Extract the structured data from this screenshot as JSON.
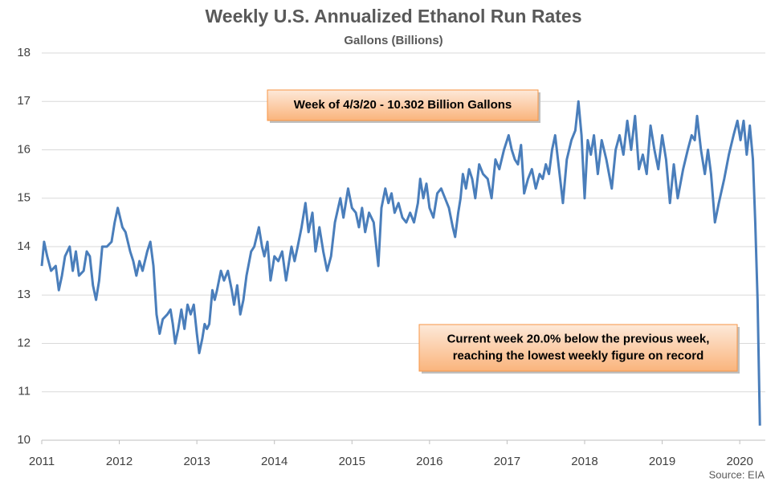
{
  "chart_data": {
    "type": "line",
    "title": "Weekly U.S. Annualized Ethanol Run Rates",
    "subtitle": "Gallons (Billions)",
    "source": "Source: EIA",
    "annotations": [
      [
        "Week of 4/3/20 - 10.302 Billion Gallons"
      ],
      [
        "Current week 20.0% below the previous week,",
        "reaching the lowest weekly figure on record"
      ]
    ],
    "xlim": [
      2011,
      2020.33
    ],
    "xticks": [
      2011,
      2012,
      2013,
      2014,
      2015,
      2016,
      2017,
      2018,
      2019,
      2020
    ],
    "ylim": [
      10,
      18
    ],
    "yticks": [
      10,
      11,
      12,
      13,
      14,
      15,
      16,
      17,
      18
    ],
    "grid": true,
    "series": [
      {
        "color": "#4a7ebb",
        "x": [
          2011.0,
          2011.03,
          2011.07,
          2011.12,
          2011.18,
          2011.22,
          2011.26,
          2011.3,
          2011.36,
          2011.4,
          2011.44,
          2011.48,
          2011.54,
          2011.58,
          2011.62,
          2011.66,
          2011.7,
          2011.74,
          2011.78,
          2011.84,
          2011.9,
          2011.94,
          2011.98,
          2012.04,
          2012.08,
          2012.14,
          2012.18,
          2012.22,
          2012.26,
          2012.3,
          2012.36,
          2012.4,
          2012.44,
          2012.48,
          2012.52,
          2012.56,
          2012.62,
          2012.66,
          2012.69,
          2012.72,
          2012.76,
          2012.8,
          2012.84,
          2012.88,
          2012.92,
          2012.96,
          2013.0,
          2013.03,
          2013.07,
          2013.1,
          2013.13,
          2013.16,
          2013.2,
          2013.23,
          2013.26,
          2013.31,
          2013.35,
          2013.4,
          2013.45,
          2013.48,
          2013.52,
          2013.56,
          2013.6,
          2013.64,
          2013.7,
          2013.74,
          2013.8,
          2013.84,
          2013.87,
          2013.91,
          2013.95,
          2014.0,
          2014.05,
          2014.1,
          2014.15,
          2014.22,
          2014.26,
          2014.3,
          2014.35,
          2014.4,
          2014.44,
          2014.49,
          2014.53,
          2014.58,
          2014.63,
          2014.68,
          2014.73,
          2014.78,
          2014.85,
          2014.89,
          2014.95,
          2015.0,
          2015.05,
          2015.09,
          2015.13,
          2015.17,
          2015.22,
          2015.28,
          2015.34,
          2015.38,
          2015.43,
          2015.47,
          2015.51,
          2015.55,
          2015.6,
          2015.65,
          2015.7,
          2015.75,
          2015.8,
          2015.85,
          2015.88,
          2015.92,
          2015.96,
          2016.0,
          2016.05,
          2016.1,
          2016.15,
          2016.2,
          2016.25,
          2016.3,
          2016.33,
          2016.37,
          2016.4,
          2016.43,
          2016.47,
          2016.51,
          2016.55,
          2016.59,
          2016.64,
          2016.69,
          2016.75,
          2016.8,
          2016.85,
          2016.9,
          2016.96,
          2017.02,
          2017.06,
          2017.1,
          2017.14,
          2017.18,
          2017.22,
          2017.27,
          2017.32,
          2017.37,
          2017.42,
          2017.46,
          2017.5,
          2017.54,
          2017.58,
          2017.62,
          2017.67,
          2017.72,
          2017.77,
          2017.83,
          2017.88,
          2017.92,
          2017.96,
          2018.0,
          2018.04,
          2018.08,
          2018.12,
          2018.17,
          2018.22,
          2018.28,
          2018.35,
          2018.4,
          2018.45,
          2018.5,
          2018.55,
          2018.6,
          2018.65,
          2018.7,
          2018.75,
          2018.8,
          2018.85,
          2018.9,
          2018.95,
          2019.0,
          2019.05,
          2019.1,
          2019.15,
          2019.2,
          2019.27,
          2019.33,
          2019.38,
          2019.42,
          2019.45,
          2019.5,
          2019.55,
          2019.59,
          2019.63,
          2019.68,
          2019.73,
          2019.8,
          2019.86,
          2019.92,
          2019.97,
          2020.01,
          2020.05,
          2020.09,
          2020.13,
          2020.17,
          2020.2,
          2020.23,
          2020.26
        ],
        "values": [
          13.6,
          14.1,
          13.8,
          13.5,
          13.6,
          13.1,
          13.4,
          13.8,
          14.0,
          13.5,
          13.9,
          13.4,
          13.5,
          13.9,
          13.8,
          13.2,
          12.9,
          13.3,
          14.0,
          14.0,
          14.1,
          14.5,
          14.8,
          14.4,
          14.3,
          13.9,
          13.7,
          13.4,
          13.7,
          13.5,
          13.9,
          14.1,
          13.6,
          12.6,
          12.2,
          12.5,
          12.6,
          12.7,
          12.4,
          12.0,
          12.3,
          12.7,
          12.3,
          12.8,
          12.6,
          12.8,
          12.2,
          11.8,
          12.1,
          12.4,
          12.3,
          12.4,
          13.1,
          12.9,
          13.1,
          13.5,
          13.3,
          13.5,
          13.1,
          12.8,
          13.2,
          12.6,
          12.9,
          13.4,
          13.9,
          14.0,
          14.4,
          14.0,
          13.8,
          14.1,
          13.3,
          13.8,
          13.7,
          13.9,
          13.3,
          14.0,
          13.7,
          14.0,
          14.4,
          14.9,
          14.3,
          14.7,
          13.9,
          14.4,
          13.9,
          13.5,
          13.8,
          14.5,
          15.0,
          14.6,
          15.2,
          14.8,
          14.7,
          14.4,
          14.8,
          14.3,
          14.7,
          14.5,
          13.6,
          14.8,
          15.2,
          14.9,
          15.1,
          14.7,
          14.9,
          14.6,
          14.5,
          14.7,
          14.5,
          14.9,
          15.4,
          15.0,
          15.3,
          14.8,
          14.6,
          15.1,
          15.2,
          15.0,
          14.8,
          14.4,
          14.2,
          14.7,
          15.0,
          15.5,
          15.2,
          15.6,
          15.4,
          15.0,
          15.7,
          15.5,
          15.4,
          15.0,
          15.8,
          15.6,
          16.0,
          16.3,
          16.0,
          15.8,
          15.7,
          16.1,
          15.1,
          15.4,
          15.6,
          15.2,
          15.5,
          15.4,
          15.7,
          15.5,
          16.0,
          16.3,
          15.6,
          14.9,
          15.8,
          16.2,
          16.4,
          17.0,
          16.3,
          15.0,
          16.2,
          15.9,
          16.3,
          15.5,
          16.2,
          15.8,
          15.2,
          16.0,
          16.3,
          15.9,
          16.6,
          16.0,
          16.7,
          15.6,
          15.9,
          15.5,
          16.5,
          16.0,
          15.6,
          16.3,
          15.8,
          14.9,
          15.7,
          15.0,
          15.6,
          16.0,
          16.3,
          16.2,
          16.7,
          16.0,
          15.5,
          16.0,
          15.5,
          14.5,
          14.9,
          15.4,
          15.9,
          16.3,
          16.6,
          16.2,
          16.6,
          15.9,
          16.5,
          15.8,
          14.5,
          12.9,
          10.302
        ]
      }
    ]
  }
}
